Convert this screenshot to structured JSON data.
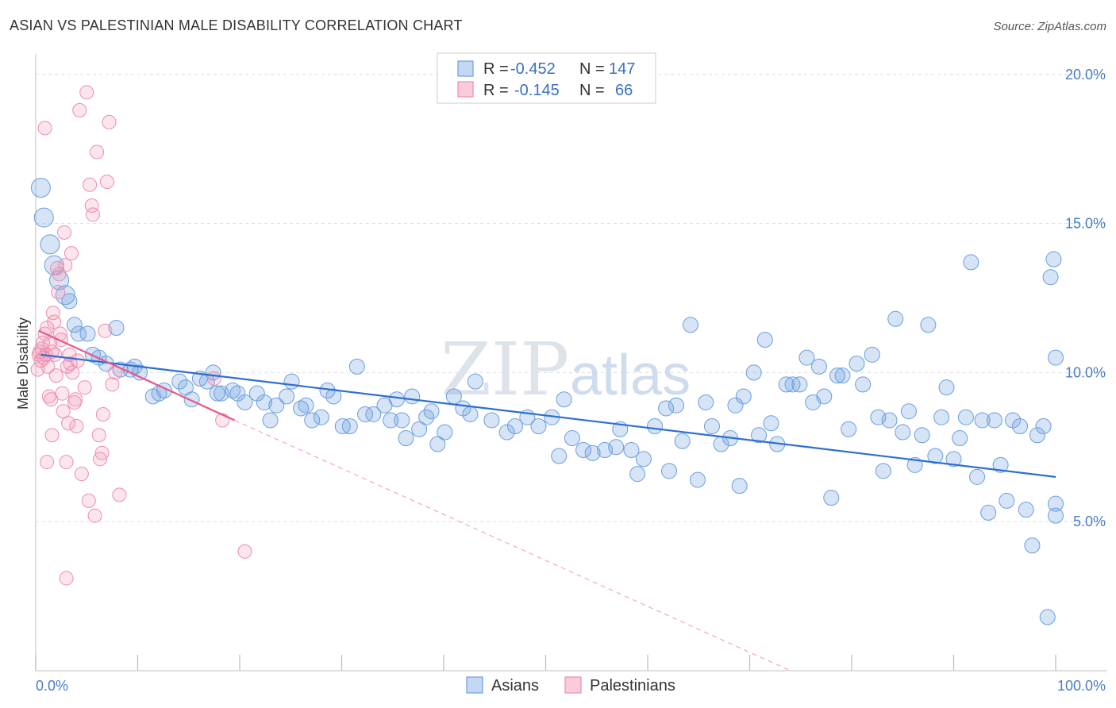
{
  "title": "ASIAN VS PALESTINIAN MALE DISABILITY CORRELATION CHART",
  "source": "Source: ZipAtlas.com",
  "watermark": {
    "zip": "ZIP",
    "atlas": "atlas"
  },
  "colors": {
    "asian": "#6a9fe0",
    "asian_line": "#2d6fd1",
    "palestinian": "#f08cae",
    "palestinian_line": "#e8588a",
    "tick": "#4a7cc9",
    "grid": "#dddddd"
  },
  "legend_box": {
    "rows": [
      {
        "r_label": "R =",
        "r_value": "-0.452",
        "n_label": "N =",
        "n_value": "147"
      },
      {
        "r_label": "R =",
        "r_value": "-0.145",
        "n_label": "N =",
        "n_value": "66"
      }
    ]
  },
  "bottom_legend": {
    "asians": "Asians",
    "palestinians": "Palestinians"
  },
  "chart_data": {
    "type": "scatter",
    "title": "ASIAN VS PALESTINIAN MALE DISABILITY CORRELATION CHART",
    "xlabel": "",
    "ylabel": "Male Disability",
    "xlim": [
      0,
      100
    ],
    "ylim": [
      0,
      20.5
    ],
    "x_tick_labels": [
      "0.0%",
      "100.0%"
    ],
    "y_ticks": [
      5,
      10,
      15,
      20
    ],
    "y_tick_labels": [
      "5.0%",
      "10.0%",
      "15.0%",
      "20.0%"
    ],
    "grid": true,
    "legend_position": "top-center",
    "series": [
      {
        "name": "Asians",
        "color": "#6a9fe0",
        "trend": {
          "x0": 0.5,
          "y0": 10.6,
          "x1": 100,
          "y1": 6.5
        },
        "points": [
          [
            0.5,
            16.2
          ],
          [
            0.8,
            15.2
          ],
          [
            1.4,
            14.3
          ],
          [
            1.8,
            13.6
          ],
          [
            2.3,
            13.1
          ],
          [
            2.9,
            12.6
          ],
          [
            3.3,
            12.4
          ],
          [
            3.8,
            11.6
          ],
          [
            4.2,
            11.3
          ],
          [
            5.1,
            11.3
          ],
          [
            7.9,
            11.5
          ],
          [
            5.6,
            10.6
          ],
          [
            6.2,
            10.5
          ],
          [
            6.9,
            10.3
          ],
          [
            8.3,
            10.1
          ],
          [
            9.3,
            10.1
          ],
          [
            9.7,
            10.2
          ],
          [
            10.2,
            10.0
          ],
          [
            11.5,
            9.2
          ],
          [
            12.1,
            9.3
          ],
          [
            12.6,
            9.4
          ],
          [
            14.1,
            9.7
          ],
          [
            14.7,
            9.5
          ],
          [
            15.3,
            9.1
          ],
          [
            16.1,
            9.8
          ],
          [
            16.8,
            9.7
          ],
          [
            17.4,
            10.0
          ],
          [
            17.8,
            9.3
          ],
          [
            18.2,
            9.3
          ],
          [
            19.3,
            9.4
          ],
          [
            19.8,
            9.3
          ],
          [
            20.5,
            9.0
          ],
          [
            21.7,
            9.3
          ],
          [
            22.4,
            9.0
          ],
          [
            23.0,
            8.4
          ],
          [
            23.6,
            8.9
          ],
          [
            24.6,
            9.2
          ],
          [
            25.1,
            9.7
          ],
          [
            26.0,
            8.8
          ],
          [
            26.5,
            8.9
          ],
          [
            27.1,
            8.4
          ],
          [
            28.0,
            8.5
          ],
          [
            28.6,
            9.4
          ],
          [
            29.2,
            9.2
          ],
          [
            30.1,
            8.2
          ],
          [
            30.8,
            8.2
          ],
          [
            31.5,
            10.2
          ],
          [
            32.3,
            8.6
          ],
          [
            33.1,
            8.6
          ],
          [
            34.2,
            8.9
          ],
          [
            34.8,
            8.4
          ],
          [
            35.4,
            9.1
          ],
          [
            35.9,
            8.4
          ],
          [
            36.3,
            7.8
          ],
          [
            36.9,
            9.2
          ],
          [
            37.6,
            8.1
          ],
          [
            38.3,
            8.5
          ],
          [
            38.8,
            8.7
          ],
          [
            39.4,
            7.6
          ],
          [
            40.1,
            8.0
          ],
          [
            41.0,
            9.2
          ],
          [
            41.9,
            8.8
          ],
          [
            42.6,
            8.6
          ],
          [
            43.1,
            9.7
          ],
          [
            44.7,
            8.4
          ],
          [
            46.2,
            8.0
          ],
          [
            47.0,
            8.2
          ],
          [
            48.2,
            8.5
          ],
          [
            49.3,
            8.2
          ],
          [
            50.6,
            8.5
          ],
          [
            51.3,
            7.2
          ],
          [
            51.8,
            9.1
          ],
          [
            52.6,
            7.8
          ],
          [
            53.7,
            7.4
          ],
          [
            54.6,
            7.3
          ],
          [
            55.8,
            7.4
          ],
          [
            56.9,
            7.5
          ],
          [
            57.3,
            8.1
          ],
          [
            58.4,
            7.4
          ],
          [
            59.0,
            6.6
          ],
          [
            59.6,
            7.1
          ],
          [
            60.7,
            8.2
          ],
          [
            61.8,
            8.8
          ],
          [
            62.1,
            6.7
          ],
          [
            62.8,
            8.9
          ],
          [
            63.4,
            7.7
          ],
          [
            64.2,
            11.6
          ],
          [
            64.9,
            6.4
          ],
          [
            65.7,
            9.0
          ],
          [
            66.3,
            8.2
          ],
          [
            67.2,
            7.6
          ],
          [
            68.1,
            7.8
          ],
          [
            68.6,
            8.9
          ],
          [
            69.0,
            6.2
          ],
          [
            69.4,
            9.2
          ],
          [
            70.4,
            10.0
          ],
          [
            70.9,
            7.9
          ],
          [
            71.5,
            11.1
          ],
          [
            72.1,
            8.3
          ],
          [
            72.7,
            7.6
          ],
          [
            73.6,
            9.6
          ],
          [
            74.2,
            9.6
          ],
          [
            74.9,
            9.6
          ],
          [
            75.6,
            10.5
          ],
          [
            76.2,
            9.0
          ],
          [
            76.8,
            10.2
          ],
          [
            77.3,
            9.2
          ],
          [
            78.0,
            5.8
          ],
          [
            78.6,
            9.9
          ],
          [
            79.1,
            9.9
          ],
          [
            79.7,
            8.1
          ],
          [
            80.5,
            10.3
          ],
          [
            81.1,
            9.6
          ],
          [
            82.0,
            10.6
          ],
          [
            82.6,
            8.5
          ],
          [
            83.1,
            6.7
          ],
          [
            83.7,
            8.4
          ],
          [
            84.3,
            11.8
          ],
          [
            85.0,
            8.0
          ],
          [
            85.6,
            8.7
          ],
          [
            86.2,
            6.9
          ],
          [
            86.9,
            7.9
          ],
          [
            87.5,
            11.6
          ],
          [
            88.2,
            7.2
          ],
          [
            88.8,
            8.5
          ],
          [
            89.3,
            9.5
          ],
          [
            90.0,
            7.1
          ],
          [
            90.6,
            7.8
          ],
          [
            91.2,
            8.5
          ],
          [
            91.7,
            13.7
          ],
          [
            92.3,
            6.5
          ],
          [
            92.8,
            8.4
          ],
          [
            93.4,
            5.3
          ],
          [
            94.0,
            8.4
          ],
          [
            94.6,
            6.9
          ],
          [
            95.2,
            5.7
          ],
          [
            95.8,
            8.4
          ],
          [
            96.5,
            8.2
          ],
          [
            97.1,
            5.4
          ],
          [
            97.7,
            4.2
          ],
          [
            98.2,
            7.9
          ],
          [
            98.8,
            8.2
          ],
          [
            99.2,
            1.8
          ],
          [
            99.5,
            13.2
          ],
          [
            99.8,
            13.8
          ],
          [
            100.0,
            10.5
          ],
          [
            100.0,
            5.6
          ],
          [
            100.0,
            5.2
          ]
        ]
      },
      {
        "name": "Palestinians",
        "color": "#f08cae",
        "trend": {
          "x0": 0.3,
          "y0": 11.4,
          "x1": 19.5,
          "y1": 8.4,
          "dashed_to_x": 74,
          "dashed_to_y": 0.0
        },
        "points": [
          [
            0.2,
            10.1
          ],
          [
            0.3,
            10.6
          ],
          [
            0.4,
            10.7
          ],
          [
            0.5,
            10.4
          ],
          [
            0.6,
            10.8
          ],
          [
            0.7,
            11.0
          ],
          [
            0.8,
            10.5
          ],
          [
            0.9,
            11.3
          ],
          [
            1.0,
            10.6
          ],
          [
            1.1,
            11.5
          ],
          [
            1.2,
            10.2
          ],
          [
            1.3,
            9.2
          ],
          [
            1.4,
            11.0
          ],
          [
            1.5,
            9.1
          ],
          [
            1.6,
            10.7
          ],
          [
            1.7,
            12.0
          ],
          [
            1.8,
            11.7
          ],
          [
            1.9,
            10.6
          ],
          [
            2.0,
            9.9
          ],
          [
            2.1,
            13.5
          ],
          [
            2.2,
            12.7
          ],
          [
            2.3,
            13.3
          ],
          [
            2.4,
            11.3
          ],
          [
            2.5,
            11.1
          ],
          [
            2.6,
            9.3
          ],
          [
            2.7,
            8.7
          ],
          [
            2.8,
            14.7
          ],
          [
            2.9,
            13.6
          ],
          [
            3.0,
            7.0
          ],
          [
            3.1,
            10.2
          ],
          [
            3.2,
            8.3
          ],
          [
            3.3,
            10.6
          ],
          [
            3.4,
            10.3
          ],
          [
            3.5,
            14.0
          ],
          [
            3.6,
            10.0
          ],
          [
            3.8,
            9.0
          ],
          [
            3.9,
            9.1
          ],
          [
            4.0,
            8.2
          ],
          [
            4.1,
            10.4
          ],
          [
            4.3,
            18.8
          ],
          [
            4.5,
            6.6
          ],
          [
            4.8,
            9.5
          ],
          [
            5.0,
            19.4
          ],
          [
            5.2,
            5.7
          ],
          [
            5.3,
            16.3
          ],
          [
            5.5,
            15.6
          ],
          [
            5.6,
            15.3
          ],
          [
            5.8,
            5.2
          ],
          [
            6.0,
            17.4
          ],
          [
            6.2,
            7.9
          ],
          [
            6.3,
            7.1
          ],
          [
            6.5,
            7.3
          ],
          [
            6.6,
            8.6
          ],
          [
            6.8,
            11.4
          ],
          [
            7.0,
            16.4
          ],
          [
            7.2,
            18.4
          ],
          [
            7.5,
            9.6
          ],
          [
            7.8,
            10.0
          ],
          [
            8.2,
            5.9
          ],
          [
            3.0,
            3.1
          ],
          [
            0.9,
            18.2
          ],
          [
            1.1,
            7.0
          ],
          [
            1.6,
            7.9
          ],
          [
            18.3,
            8.4
          ],
          [
            20.5,
            4.0
          ],
          [
            17.5,
            9.8
          ]
        ]
      }
    ]
  }
}
